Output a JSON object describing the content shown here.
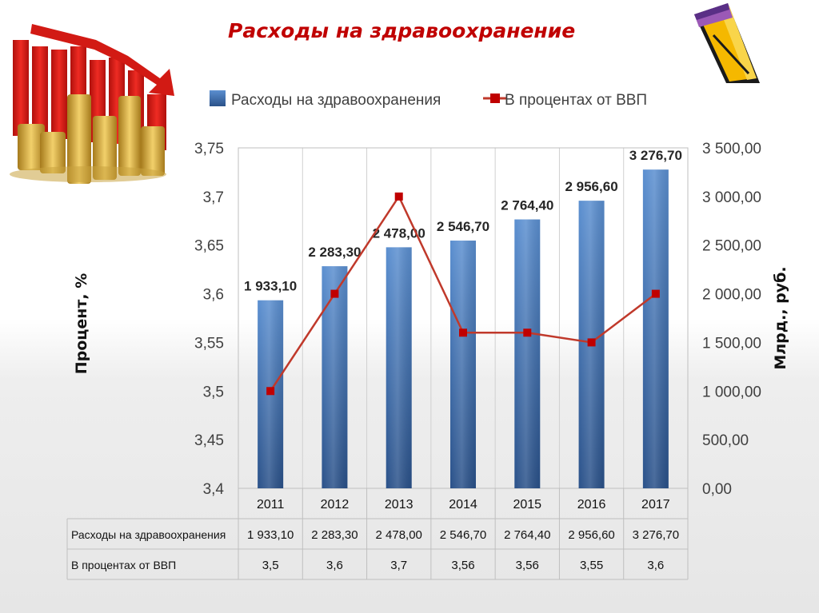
{
  "title": "Расходы на здравоохранение",
  "chart_data": {
    "type": "bar",
    "categories": [
      "2011",
      "2012",
      "2013",
      "2014",
      "2015",
      "2016",
      "2017"
    ],
    "series": [
      {
        "name": "Расходы на здравоохранения",
        "type": "bar",
        "axis": "right",
        "values": [
          1933.1,
          2283.3,
          2478.0,
          2546.7,
          2764.4,
          2956.6,
          3276.7
        ],
        "labels": [
          "1 933,10",
          "2 283,30",
          "2 478,00",
          "2 546,70",
          "2 764,40",
          "2 956,60",
          "3 276,70"
        ],
        "color": "#4a7ebb"
      },
      {
        "name": "В процентах от ВВП",
        "type": "line",
        "axis": "left",
        "values": [
          3.5,
          3.6,
          3.7,
          3.56,
          3.56,
          3.55,
          3.6
        ],
        "labels": [
          "3,5",
          "3,6",
          "3,7",
          "3,56",
          "3,56",
          "3,55",
          "3,6"
        ],
        "color": "#c0392b"
      }
    ],
    "y_left": {
      "label": "Процент, %",
      "range": [
        3.4,
        3.75
      ],
      "ticks": [
        "3,4",
        "3,45",
        "3,5",
        "3,55",
        "3,6",
        "3,65",
        "3,7",
        "3,75"
      ]
    },
    "y_right": {
      "label": "Млрд., руб.",
      "range": [
        0,
        3500
      ],
      "ticks": [
        "0,00",
        "500,00",
        "1 000,00",
        "1 500,00",
        "2 000,00",
        "2 500,00",
        "3 000,00",
        "3 500,00"
      ]
    },
    "grid": "vertical",
    "legend": "top",
    "data_table": true
  }
}
